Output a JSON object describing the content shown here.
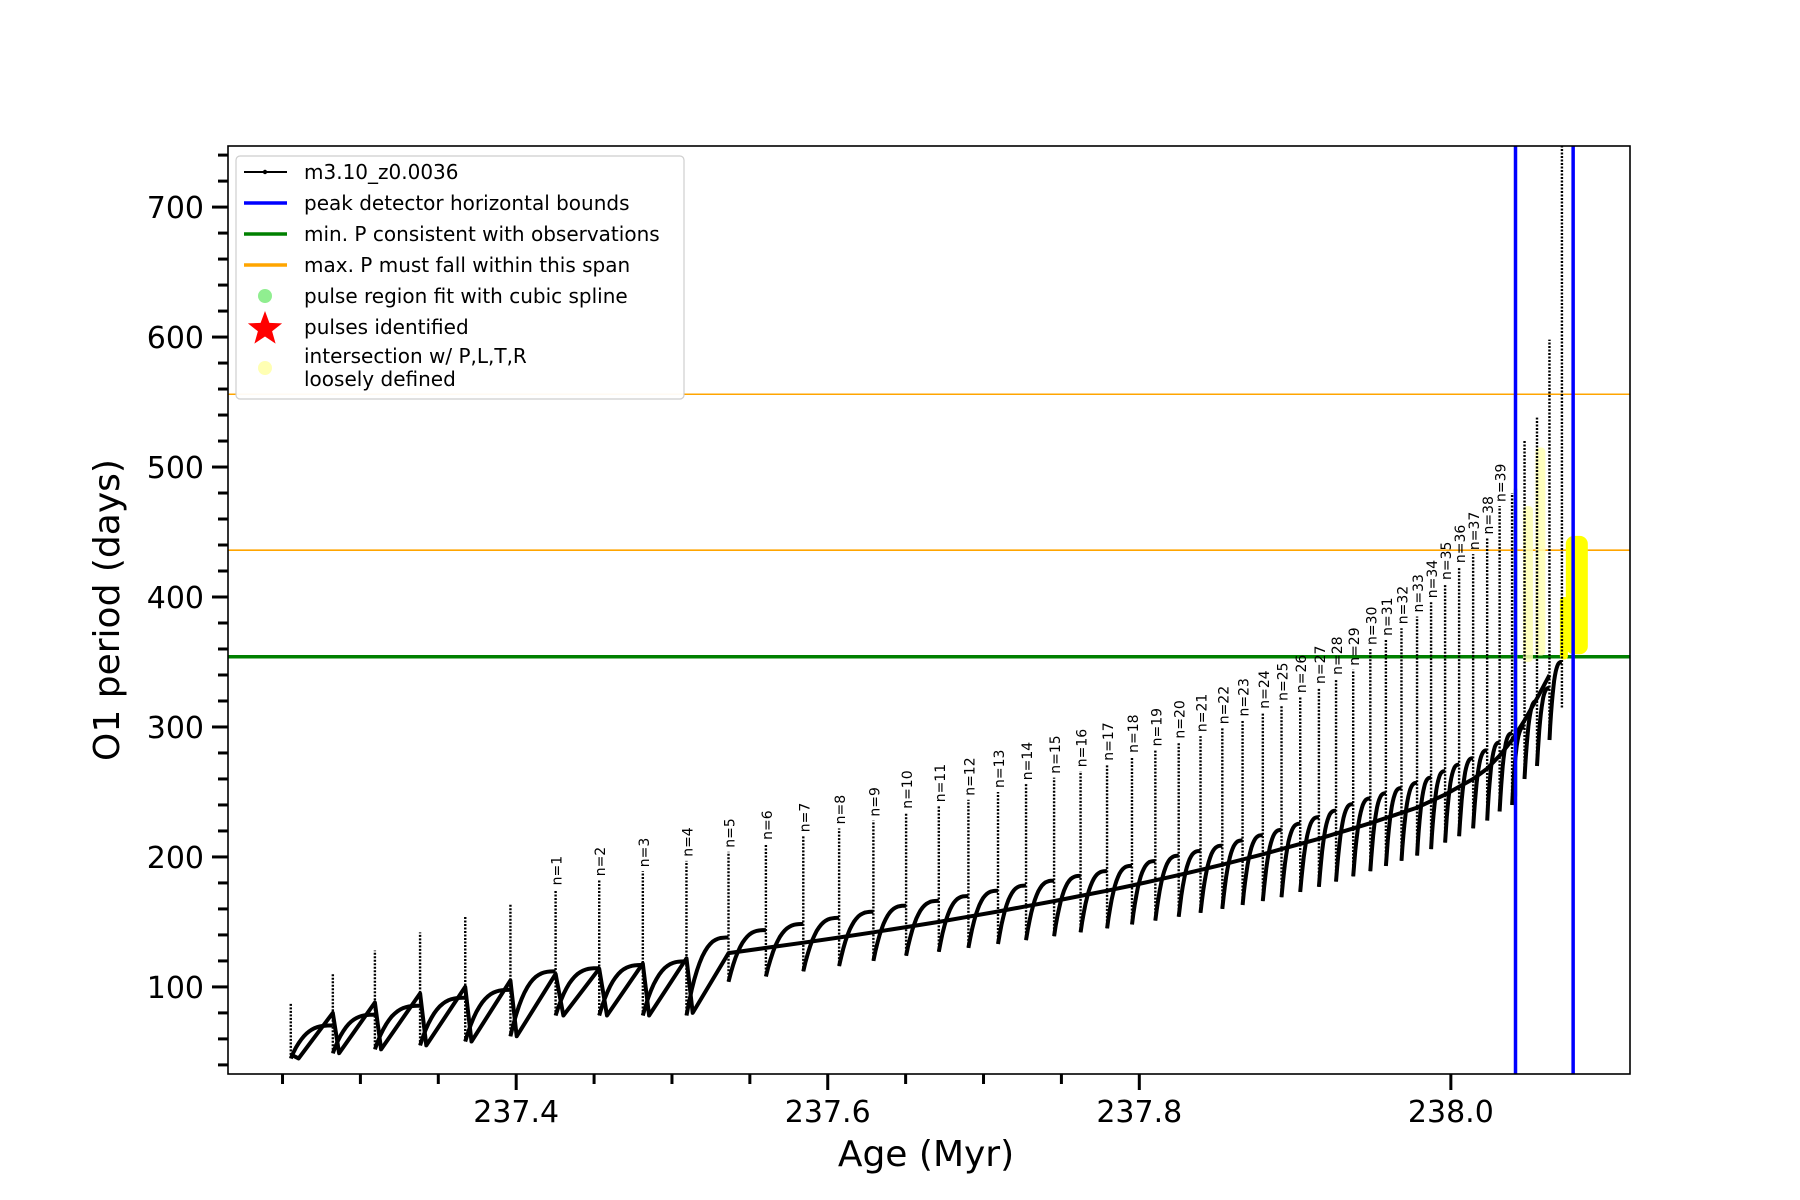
{
  "chart_data": {
    "type": "line",
    "xlabel": "Age (Myr)",
    "ylabel": "O1 period (days)",
    "xlim": [
      237.215,
      238.115
    ],
    "ylim": [
      33,
      747
    ],
    "x_ticks": [
      237.4,
      237.6,
      237.8,
      238.0
    ],
    "x_tick_labels": [
      "237.4",
      "237.6",
      "237.8",
      "238.0"
    ],
    "y_ticks": [
      100,
      200,
      300,
      400,
      500,
      600,
      700
    ],
    "y_tick_labels": [
      "100",
      "200",
      "300",
      "400",
      "500",
      "600",
      "700"
    ],
    "grid": false,
    "legend_position": "top-left",
    "legend": [
      {
        "label": "m3.10_z0.0036",
        "color": "#000000",
        "marker": "line-dot"
      },
      {
        "label": "peak detector horizontal bounds",
        "color": "#0000ff",
        "marker": "line"
      },
      {
        "label": "min. P consistent with observations",
        "color": "#008000",
        "marker": "line"
      },
      {
        "label": "max. P must fall within this span",
        "color": "#ffa500",
        "marker": "line"
      },
      {
        "label": "pulse region fit with cubic spline",
        "color": "#90ee90",
        "marker": "dot"
      },
      {
        "label": "pulses identified",
        "color": "#ff0000",
        "marker": "star"
      },
      {
        "label": "intersection w/ P,L,T,R\nloosely defined",
        "color": "#ffffb3",
        "marker": "dot"
      }
    ],
    "hlines": [
      {
        "name": "min. P consistent with observations",
        "y": 354,
        "color": "#008000"
      },
      {
        "name": "max. P must fall within this span",
        "y": 436,
        "color": "#ffa500"
      },
      {
        "name": "max. P must fall within this span",
        "y": 556,
        "color": "#ffa500"
      }
    ],
    "vlines": [
      {
        "name": "peak detector horizontal bounds",
        "x": 238.0415,
        "color": "#0000ff"
      },
      {
        "name": "peak detector horizontal bounds",
        "x": 238.0785,
        "color": "#0000ff"
      }
    ],
    "pulses": [
      {
        "label": "n=1",
        "x": 237.4253,
        "peak": 175,
        "base": 78
      },
      {
        "label": "n=2",
        "x": 237.4533,
        "peak": 182,
        "base": 78
      },
      {
        "label": "n=3",
        "x": 237.4813,
        "peak": 189,
        "base": 78
      },
      {
        "label": "n=4",
        "x": 237.5093,
        "peak": 197,
        "base": 78
      },
      {
        "label": "n=5",
        "x": 237.5363,
        "peak": 204,
        "base": 104
      },
      {
        "label": "n=6",
        "x": 237.5603,
        "peak": 210,
        "base": 108
      },
      {
        "label": "n=7",
        "x": 237.5843,
        "peak": 216,
        "base": 112
      },
      {
        "label": "n=8",
        "x": 237.6073,
        "peak": 222,
        "base": 116
      },
      {
        "label": "n=9",
        "x": 237.6293,
        "peak": 228,
        "base": 120
      },
      {
        "label": "n=10",
        "x": 237.6503,
        "peak": 234,
        "base": 124
      },
      {
        "label": "n=11",
        "x": 237.6713,
        "peak": 239,
        "base": 127
      },
      {
        "label": "n=12",
        "x": 237.6903,
        "peak": 244,
        "base": 130
      },
      {
        "label": "n=13",
        "x": 237.7093,
        "peak": 250,
        "base": 133
      },
      {
        "label": "n=14",
        "x": 237.7273,
        "peak": 256,
        "base": 136
      },
      {
        "label": "n=15",
        "x": 237.7453,
        "peak": 261,
        "base": 139
      },
      {
        "label": "n=16",
        "x": 237.7623,
        "peak": 266,
        "base": 142
      },
      {
        "label": "n=17",
        "x": 237.7793,
        "peak": 271,
        "base": 145
      },
      {
        "label": "n=18",
        "x": 237.7953,
        "peak": 277,
        "base": 148
      },
      {
        "label": "n=19",
        "x": 237.8103,
        "peak": 282,
        "base": 151
      },
      {
        "label": "n=20",
        "x": 237.8253,
        "peak": 288,
        "base": 154
      },
      {
        "label": "n=21",
        "x": 237.8393,
        "peak": 293,
        "base": 157
      },
      {
        "label": "n=22",
        "x": 237.8533,
        "peak": 299,
        "base": 160
      },
      {
        "label": "n=23",
        "x": 237.8663,
        "peak": 305,
        "base": 163
      },
      {
        "label": "n=24",
        "x": 237.8793,
        "peak": 311,
        "base": 166
      },
      {
        "label": "n=25",
        "x": 237.8913,
        "peak": 317,
        "base": 169
      },
      {
        "label": "n=26",
        "x": 237.9033,
        "peak": 323,
        "base": 173
      },
      {
        "label": "n=27",
        "x": 237.9153,
        "peak": 330,
        "base": 177
      },
      {
        "label": "n=28",
        "x": 237.9263,
        "peak": 337,
        "base": 181
      },
      {
        "label": "n=29",
        "x": 237.9373,
        "peak": 344,
        "base": 185
      },
      {
        "label": "n=30",
        "x": 237.9483,
        "peak": 360,
        "base": 189
      },
      {
        "label": "n=31",
        "x": 237.9583,
        "peak": 367,
        "base": 193
      },
      {
        "label": "n=32",
        "x": 237.9683,
        "peak": 376,
        "base": 197
      },
      {
        "label": "n=33",
        "x": 237.9783,
        "peak": 385,
        "base": 201
      },
      {
        "label": "n=34",
        "x": 237.9873,
        "peak": 396,
        "base": 206
      },
      {
        "label": "n=35",
        "x": 237.9963,
        "peak": 410,
        "base": 211
      },
      {
        "label": "n=36",
        "x": 238.0053,
        "peak": 423,
        "base": 216
      },
      {
        "label": "n=37",
        "x": 238.0143,
        "peak": 433,
        "base": 222
      },
      {
        "label": "n=38",
        "x": 238.0233,
        "peak": 445,
        "base": 228
      },
      {
        "label": "n=39",
        "x": 238.0313,
        "peak": 470,
        "base": 235
      }
    ],
    "early_pulses": [
      {
        "x": 237.2553,
        "peak": 88,
        "base": 45
      },
      {
        "x": 237.2823,
        "peak": 110,
        "base": 49
      },
      {
        "x": 237.3093,
        "peak": 128,
        "base": 52
      },
      {
        "x": 237.3383,
        "peak": 142,
        "base": 55
      },
      {
        "x": 237.3673,
        "peak": 154,
        "base": 58
      },
      {
        "x": 237.3963,
        "peak": 164,
        "base": 62
      }
    ],
    "late_spikes": [
      {
        "x": 238.0393,
        "peak": 480,
        "base": 240
      },
      {
        "x": 238.0473,
        "peak": 520,
        "base": 260
      },
      {
        "x": 238.0553,
        "peak": 538,
        "base": 270
      },
      {
        "x": 238.0633,
        "peak": 598,
        "base": 290
      },
      {
        "x": 238.0713,
        "peak": 747,
        "base": 315
      }
    ],
    "series": [
      {
        "name": "m3.10_z0.0036",
        "x": [
          237.2553,
          237.2603,
          237.2823,
          237.2863,
          237.3093,
          237.3133,
          237.3383,
          237.3423,
          237.3673,
          237.3713,
          237.3963,
          237.4003,
          237.4253,
          237.4303,
          237.4533,
          237.4583,
          237.4813,
          237.4853,
          237.5093,
          237.5133,
          237.5363,
          237.5603,
          237.5843,
          237.6073,
          237.6293,
          237.6503,
          237.6713,
          237.6903,
          237.7093,
          237.7273,
          237.7453,
          237.7623,
          237.7793,
          237.7953,
          237.8103,
          237.8253,
          237.8393,
          237.8533,
          237.8663,
          237.8793,
          237.8913,
          237.9033,
          237.9153,
          237.9263,
          237.9373,
          237.9483,
          237.9583,
          237.9683,
          237.9783,
          237.9873,
          237.9963,
          238.0053,
          238.0143,
          238.0233,
          238.0313,
          238.0393,
          238.0473,
          238.0553,
          238.0633
        ],
        "y": [
          48,
          45,
          80,
          49,
          88,
          52,
          95,
          55,
          100,
          58,
          105,
          62,
          110,
          78,
          114,
          78,
          118,
          78,
          122,
          80,
          126,
          130,
          134,
          138,
          142,
          146,
          150,
          154,
          158,
          162,
          166,
          170,
          174,
          178,
          182,
          186,
          190,
          194,
          198,
          202,
          206,
          210,
          214,
          218,
          222,
          226,
          230,
          234,
          238,
          243,
          248,
          254,
          260,
          268,
          278,
          290,
          305,
          322,
          340
        ]
      }
    ]
  }
}
